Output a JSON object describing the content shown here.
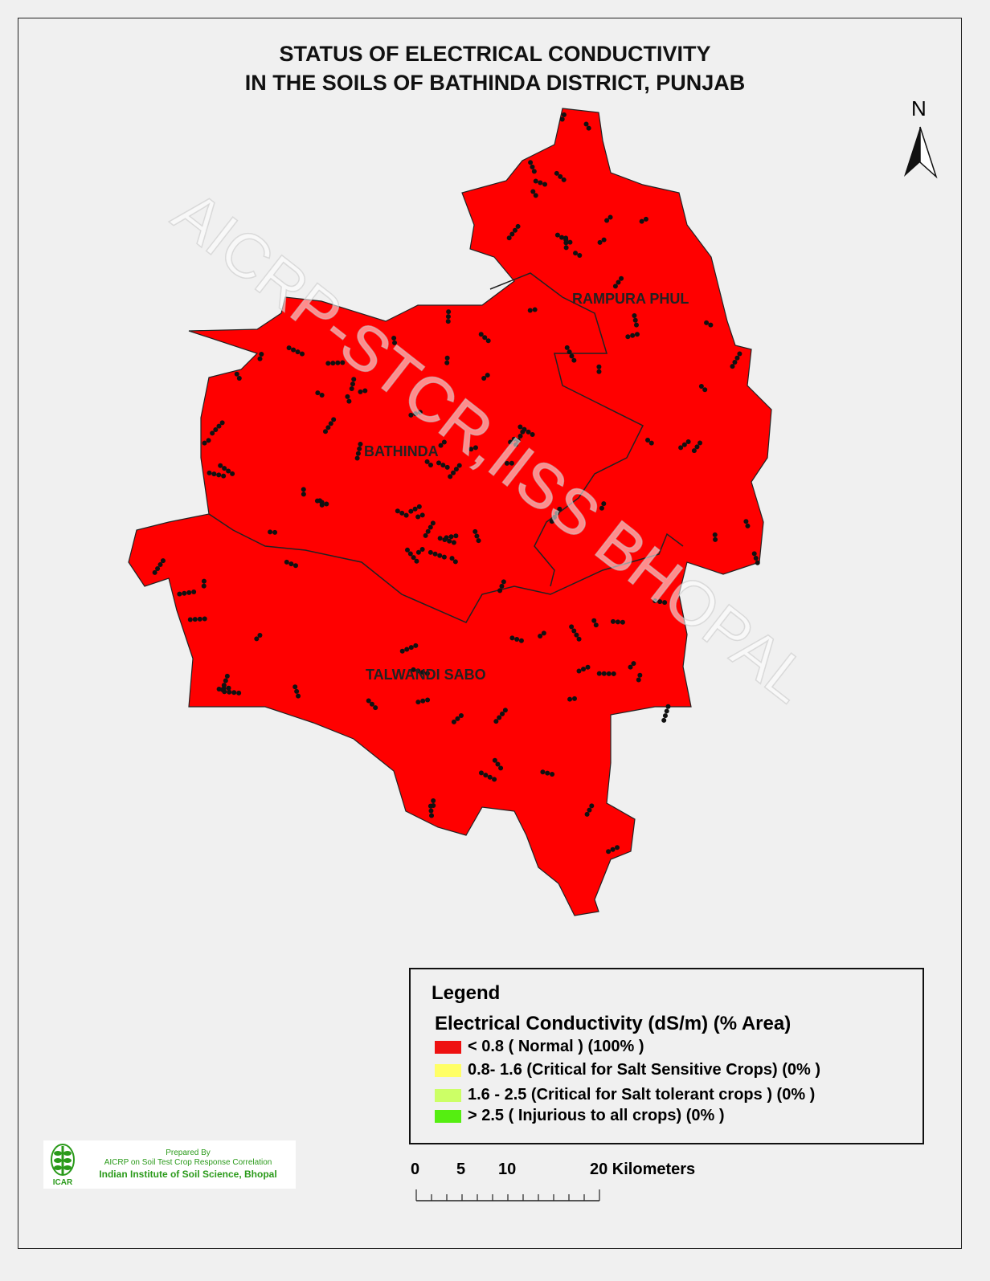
{
  "title": {
    "line1": "STATUS OF ELECTRICAL CONDUCTIVITY",
    "line2": "IN THE SOILS OF BATHINDA DISTRICT, PUNJAB"
  },
  "north_arrow": {
    "label": "N"
  },
  "blocks": [
    {
      "name": "RAMPURA PHUL"
    },
    {
      "name": "BATHINDA"
    },
    {
      "name": "TALWANDI SABO"
    }
  ],
  "watermark": "AICRP-STCR,IISS BHOPAL",
  "legend": {
    "title": "Legend",
    "heading": "Electrical Conductivity (dS/m) (% Area)",
    "items": [
      {
        "label": "<  0.8 ( Normal ) (100% )",
        "color": "#ee1111",
        "percent": 100
      },
      {
        "label": "0.8- 1.6 (Critical for Salt Sensitive  Crops)  (0% )",
        "color": "#ffff66",
        "percent": 0
      },
      {
        "label": "1.6 - 2.5  (Critical for Salt tolerant crops ) (0% )",
        "color": "#ccff66",
        "percent": 0
      },
      {
        "label": "> 2.5   ( Injurious to all crops) (0% )",
        "color": "#55ee11",
        "percent": 0
      }
    ]
  },
  "scale_bar": {
    "labels": [
      "0",
      "5",
      "10",
      "20 Kilometers"
    ]
  },
  "credit": {
    "line1": "Prepared By",
    "line2": "AICRP on Soil Test Crop Response Correlation",
    "line3": "Indian Institute of Soil Science, Bhopal",
    "logo_text": "ICAR"
  },
  "colors": {
    "district_fill": "#ff0000",
    "sample_points": "#111111"
  }
}
